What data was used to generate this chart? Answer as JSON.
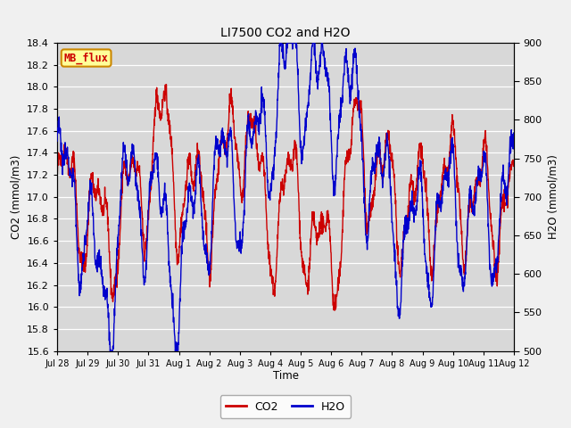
{
  "title": "LI7500 CO2 and H2O",
  "xlabel": "Time",
  "ylabel_left": "CO2 (mmol/m3)",
  "ylabel_right": "H2O (mmol/m3)",
  "ylim_left": [
    15.6,
    18.4
  ],
  "ylim_right": [
    500,
    900
  ],
  "co2_color": "#cc0000",
  "h2o_color": "#0000cc",
  "fig_bg_color": "#f0f0f0",
  "plot_bg_color": "#d8d8d8",
  "annotation_text": "MB_flux",
  "annotation_bg": "#ffff99",
  "annotation_border": "#cc8800",
  "annotation_text_color": "#cc0000",
  "legend_co2": "CO2",
  "legend_h2o": "H2O",
  "x_tick_labels": [
    "Jul 28",
    "Jul 29",
    "Jul 30",
    "Jul 31",
    "Aug 1",
    "Aug 2",
    "Aug 3",
    "Aug 4",
    "Aug 5",
    "Aug 6",
    "Aug 7",
    "Aug 8",
    "Aug 9",
    "Aug 10",
    "Aug 11",
    "Aug 12"
  ],
  "yticks_left": [
    15.6,
    15.8,
    16.0,
    16.2,
    16.4,
    16.6,
    16.8,
    17.0,
    17.2,
    17.4,
    17.6,
    17.8,
    18.0,
    18.2,
    18.4
  ],
  "yticks_right": [
    500,
    550,
    600,
    650,
    700,
    750,
    800,
    850,
    900
  ],
  "seed": 42
}
